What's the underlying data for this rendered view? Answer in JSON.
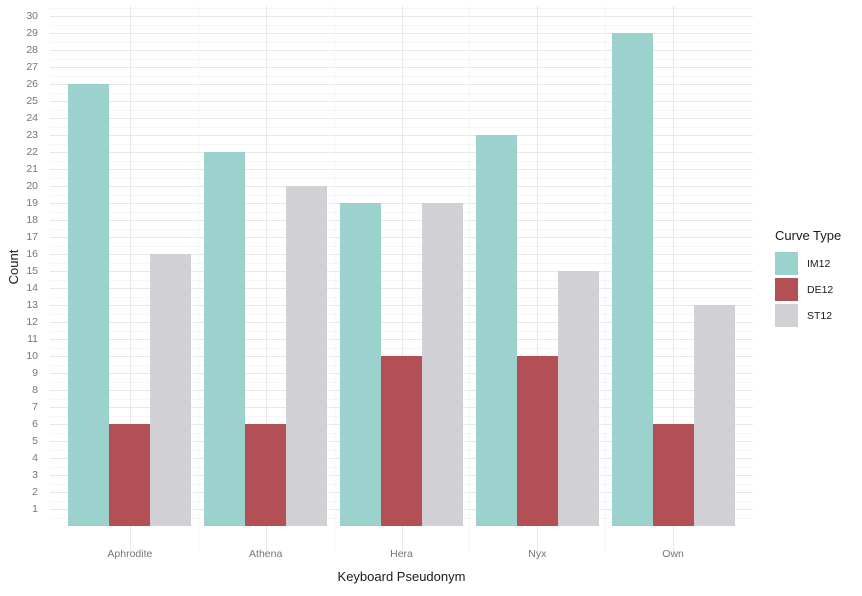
{
  "chart_data": {
    "type": "bar",
    "title": "",
    "xlabel": "Keyboard Pseudonym",
    "ylabel": "Count",
    "categories": [
      "Aphrodite",
      "Athena",
      "Hera",
      "Nyx",
      "Own"
    ],
    "series": [
      {
        "name": "IM12",
        "color": "#9cd2cd",
        "values": [
          26,
          22,
          19,
          23,
          29
        ]
      },
      {
        "name": "DE12",
        "color": "#b25056",
        "values": [
          6,
          6,
          10,
          10,
          6
        ]
      },
      {
        "name": "ST12",
        "color": "#d1d1d5",
        "values": [
          16,
          20,
          19,
          15,
          13
        ]
      }
    ],
    "legend_title": "Curve Type",
    "legend_position": "right",
    "ylim": [
      0,
      30.6
    ],
    "y_tick_min": 1,
    "y_tick_max": 30,
    "y_tick_step": 1,
    "grid": "major and minor gridlines, white background",
    "bar_layout": "dodged"
  },
  "style_colors": {
    "grid_major": "#e8e8e8",
    "grid_minor": "#f5f5f5",
    "tick_label": "#757575",
    "axis_title": "#1a1a1a",
    "background": "#ffffff"
  }
}
